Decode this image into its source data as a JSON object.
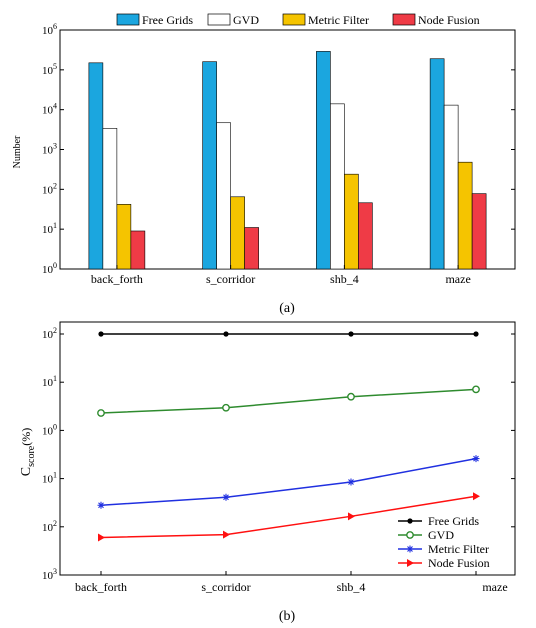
{
  "chart_data": [
    {
      "type": "bar",
      "panel_label": "(a)",
      "ylabel": "Number",
      "yscale": "log",
      "ylim": [
        1,
        1000000
      ],
      "yticks": [
        {
          "base": "10",
          "exp": "0",
          "value": 1
        },
        {
          "base": "10",
          "exp": "1",
          "value": 10
        },
        {
          "base": "10",
          "exp": "2",
          "value": 100
        },
        {
          "base": "10",
          "exp": "3",
          "value": 1000
        },
        {
          "base": "10",
          "exp": "4",
          "value": 10000
        },
        {
          "base": "10",
          "exp": "5",
          "value": 100000
        },
        {
          "base": "10",
          "exp": "6",
          "value": 1000000
        }
      ],
      "categories": [
        "back_forth",
        "s_corridor",
        "shb_4",
        "maze"
      ],
      "legend_position": "top",
      "series": [
        {
          "name": "Free Grids",
          "color": "#1ba6df",
          "values": [
            150000,
            160000,
            290000,
            190000
          ]
        },
        {
          "name": "GVD",
          "color": "#ffffff",
          "values": [
            3400,
            4700,
            14000,
            13000
          ]
        },
        {
          "name": "Metric Filter",
          "color": "#f5c400",
          "values": [
            42,
            65,
            240,
            480
          ]
        },
        {
          "name": "Node Fusion",
          "color": "#ef3b46",
          "values": [
            9,
            11,
            46,
            78
          ]
        }
      ]
    },
    {
      "type": "line",
      "panel_label": "(b)",
      "ylabel": {
        "main": "C",
        "sub": "score",
        "unit": "(%)"
      },
      "yscale": "log",
      "ylim": [
        0.001,
        100
      ],
      "yticks": [
        {
          "base": "10",
          "exp": "2",
          "value": 100
        },
        {
          "base": "10",
          "exp": "1",
          "value": 10
        },
        {
          "base": "10",
          "exp": "0",
          "value": 1
        },
        {
          "base": "10",
          "exp": "1",
          "value": 0.1
        },
        {
          "base": "10",
          "exp": "2",
          "value": 0.01
        },
        {
          "base": "10",
          "exp": "3",
          "value": 0.001
        }
      ],
      "categories": [
        "back_forth",
        "s_corridor",
        "shb_4",
        "maze"
      ],
      "legend_position": "bottom-right",
      "series": [
        {
          "name": "Free Grids",
          "color": "#000000",
          "marker": "dot",
          "values": [
            100,
            100,
            100,
            100
          ]
        },
        {
          "name": "GVD",
          "color": "#2e8b2e",
          "marker": "circle",
          "values": [
            2.3,
            2.95,
            5.0,
            7.1
          ]
        },
        {
          "name": "Metric Filter",
          "color": "#2030e0",
          "marker": "star",
          "values": [
            0.028,
            0.041,
            0.085,
            0.26
          ]
        },
        {
          "name": "Node Fusion",
          "color": "#ff1010",
          "marker": "triangle",
          "values": [
            0.006,
            0.0069,
            0.0165,
            0.043
          ]
        }
      ]
    }
  ]
}
